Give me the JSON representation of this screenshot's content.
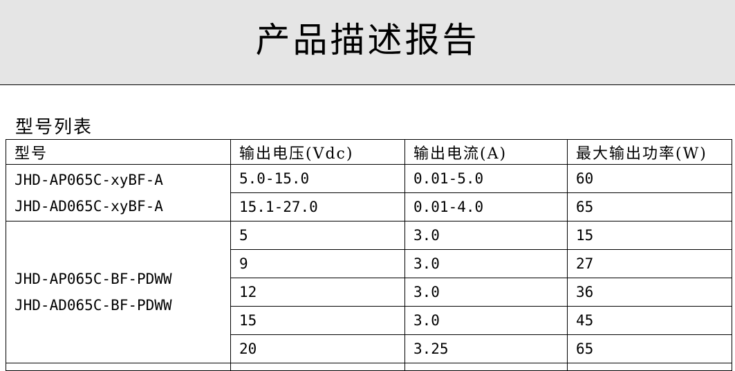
{
  "header": {
    "title": "产品描述报告"
  },
  "section": {
    "title": "型号列表"
  },
  "table": {
    "columns": [
      "型号",
      "输出电压(Vdc)",
      "输出电流(A)",
      "最大输出功率(W)"
    ],
    "groups": [
      {
        "models": [
          "JHD-AP065C-xyBF-A",
          "JHD-AD065C-xyBF-A"
        ],
        "rows": [
          [
            "5.0-15.0",
            "0.01-5.0",
            "60"
          ],
          [
            "15.1-27.0",
            "0.01-4.0",
            "65"
          ]
        ]
      },
      {
        "models": [
          "JHD-AP065C-BF-PDWW",
          "JHD-AD065C-BF-PDWW"
        ],
        "rows": [
          [
            "5",
            "3.0",
            "15"
          ],
          [
            "9",
            "3.0",
            "27"
          ],
          [
            "12",
            "3.0",
            "36"
          ],
          [
            "15",
            "3.0",
            "45"
          ],
          [
            "20",
            "3.25",
            "65"
          ]
        ]
      }
    ]
  }
}
